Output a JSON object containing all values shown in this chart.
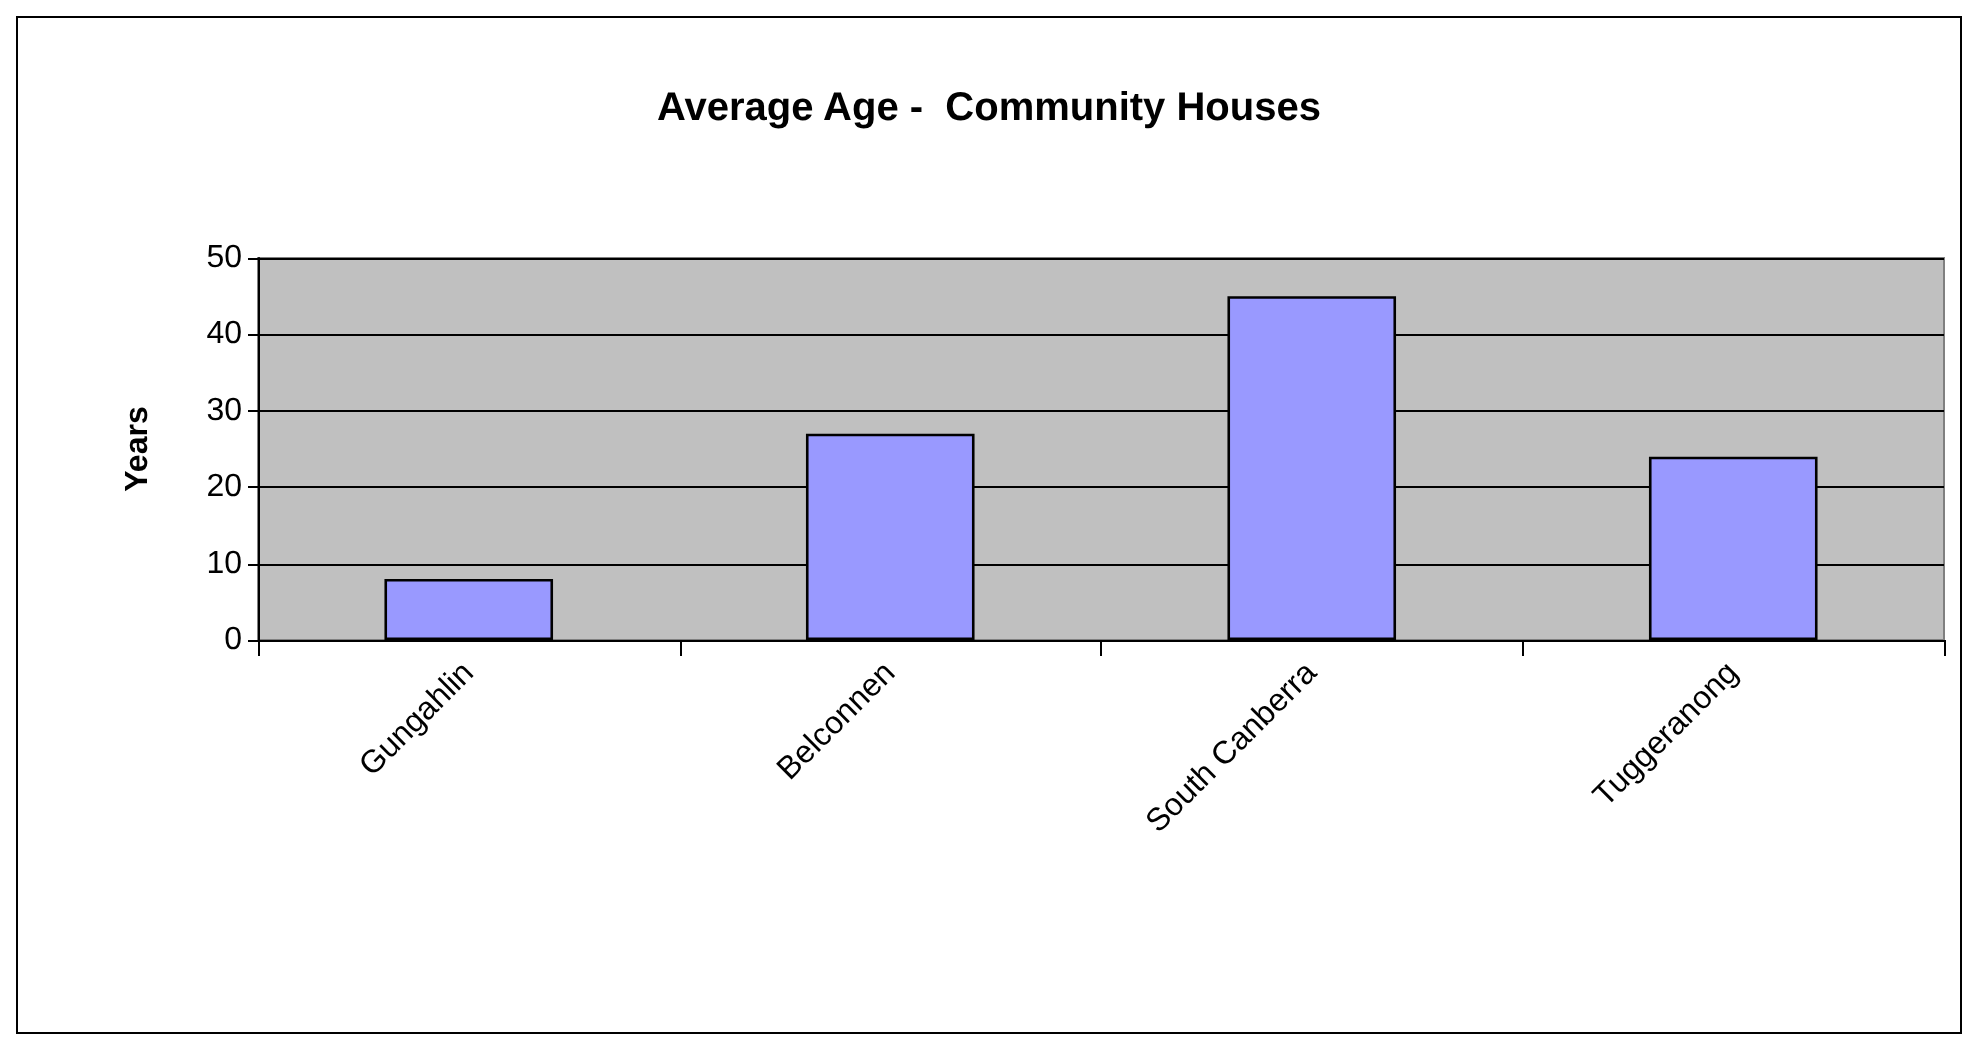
{
  "chart_data": {
    "type": "bar",
    "title": "Average Age -  Community Houses",
    "ylabel": "Years",
    "categories": [
      "Gungahlin",
      "Belconnen",
      "South Canberra",
      "Tuggeranong"
    ],
    "values": [
      8,
      27,
      45,
      24
    ],
    "color": "#9999ff",
    "ylim": [
      0,
      50
    ],
    "yticks": [
      0,
      10,
      20,
      30,
      40,
      50
    ],
    "grid": "y"
  }
}
